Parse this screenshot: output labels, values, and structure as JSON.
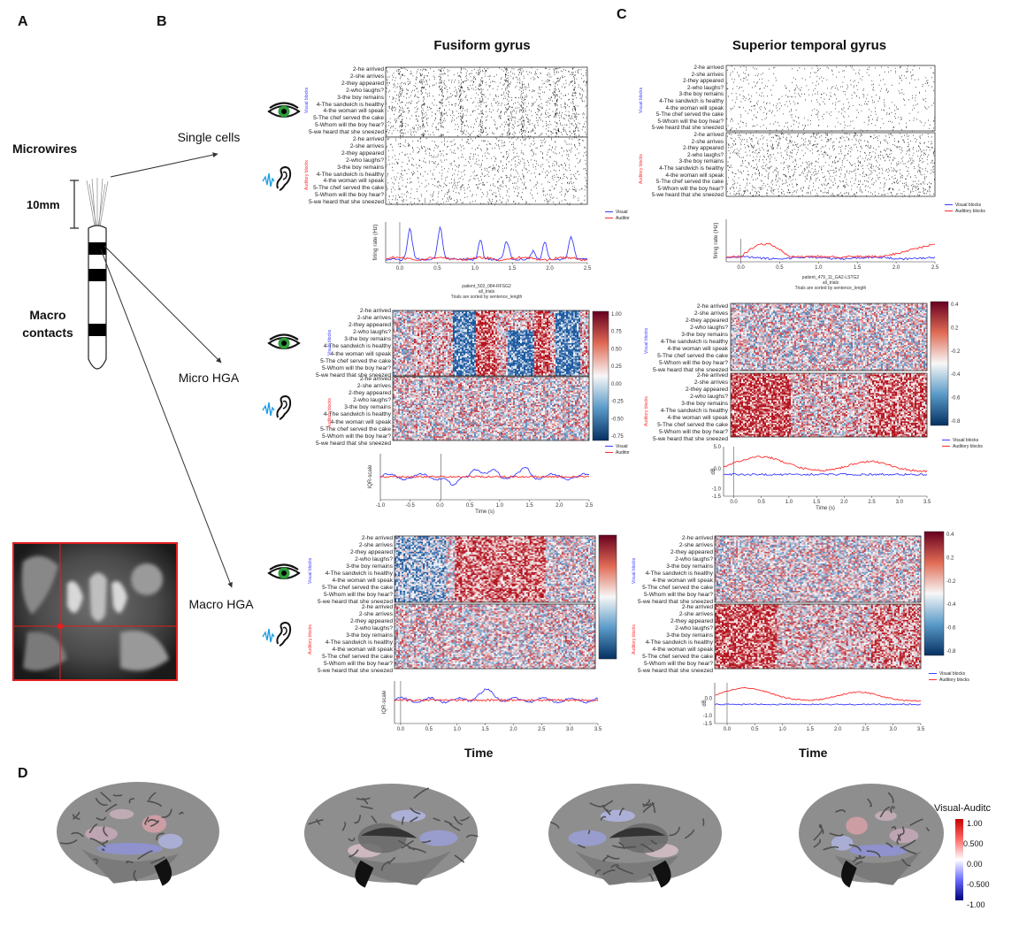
{
  "panel_labels": {
    "a": "A",
    "b": "B",
    "c": "C",
    "d": "D"
  },
  "electrode": {
    "microwires": "Microwires",
    "scale": "10mm",
    "macro": "Macro",
    "contacts": "contacts"
  },
  "rows": {
    "single_cells": "Single cells",
    "micro_hga": "Micro HGA",
    "macro_hga": "Macro HGA"
  },
  "columns": {
    "left": "Fusiform gyrus",
    "right": "Superior temporal gyrus"
  },
  "trials": [
    "2-he arrived",
    "2-she arrives",
    "2-they appeared",
    "2-who laughs?",
    "3-the boy remains",
    "4-The sandwich is healthy",
    "4-the woman will speak",
    "5-The chef served the cake",
    "5-Whom will the boy hear?",
    "5-we heard that she sneezed"
  ],
  "blocks": {
    "visual": "Visual blocks",
    "auditory": "Auditory blocks"
  },
  "legend": {
    "visual_short": "Visual",
    "auditory_short": "Auditor",
    "visual": "Visual blocks",
    "auditory": "Auditory blocks"
  },
  "axes": {
    "firing_rate": "firing rate (Hz)",
    "iqr": "IQR-scale",
    "db": "dB",
    "time_s": "Time (s)",
    "time_big": "Time"
  },
  "captions": {
    "fg_single": [
      "patient_502_084-RFSG2",
      "all_trials",
      "Trials are sorted by sentence_length"
    ],
    "stg_single": [
      "patient_479_11_GA2-LSTG2",
      "all_trials",
      "Trials are sorted by sentence_length"
    ]
  },
  "colorbars": {
    "fg_micro": [
      "1.00",
      "0.75",
      "0.50",
      "0.25",
      "0.00",
      "-0.25",
      "-0.50",
      "-0.75"
    ],
    "stg_micro": [
      "0.4",
      "0.2",
      "-0.2",
      "-0.4",
      "-0.6",
      "-0.8"
    ],
    "stg_macro": [
      "0.4",
      "0.2",
      "-0.2",
      "-0.4",
      "-0.6",
      "-0.8"
    ]
  },
  "brain_colorbar": {
    "title": "Visual-Auditc",
    "ticks": [
      "1.00",
      "0.500",
      "0.00",
      "-0.500",
      "-1.00"
    ]
  },
  "colors": {
    "visual": "#3b3bff",
    "auditory": "#ff2b2b",
    "red_box": "#e02020"
  },
  "chart_data": [
    {
      "type": "line",
      "panel": "B single cells",
      "ylabel": "firing rate (Hz)",
      "x_ticks": [
        "0.0",
        "0.5",
        "1.0",
        "1.5",
        "2.0",
        "2.5"
      ],
      "series": [
        {
          "name": "Visual",
          "peaks_at_s": [
            0.1,
            0.65,
            1.2,
            1.65,
            2.2,
            2.55
          ]
        },
        {
          "name": "Auditor"
        }
      ]
    },
    {
      "type": "line",
      "panel": "C single cells",
      "ylabel": "firing rate (Hz)",
      "x_ticks": [
        "0.0",
        "0.5",
        "1.0",
        "1.5",
        "2.0",
        "2.5"
      ],
      "series": [
        {
          "name": "Visual blocks"
        },
        {
          "name": "Auditory blocks"
        }
      ]
    },
    {
      "type": "line",
      "panel": "B micro HGA",
      "ylabel": "IQR-scale",
      "xlabel": "Time (s)",
      "x_ticks": [
        "-1.0",
        "-0.5",
        "0.0",
        "0.5",
        "1.0",
        "1.5",
        "2.0",
        "2.5"
      ]
    },
    {
      "type": "line",
      "panel": "C micro HGA",
      "ylabel": "dB",
      "xlabel": "Time (s)",
      "y_ticks": [
        "5.0",
        "0.0",
        "-1.0",
        "-1.5"
      ],
      "x_ticks": [
        "0.0",
        "0.5",
        "1.0",
        "1.5",
        "2.0",
        "2.5",
        "3.0",
        "3.5"
      ]
    },
    {
      "type": "line",
      "panel": "B macro HGA",
      "ylabel": "IQR-scale",
      "x_ticks": [
        "0.0",
        "0.5",
        "1.0",
        "1.5",
        "2.0",
        "2.5",
        "3.0",
        "3.5"
      ]
    },
    {
      "type": "line",
      "panel": "C macro HGA",
      "ylabel": "dB",
      "y_ticks": [
        "0.0",
        "-1.0",
        "-1.5"
      ],
      "x_ticks": [
        "0.0",
        "0.5",
        "1.0",
        "1.5",
        "2.0",
        "2.5",
        "3.0",
        "3.5"
      ]
    }
  ]
}
